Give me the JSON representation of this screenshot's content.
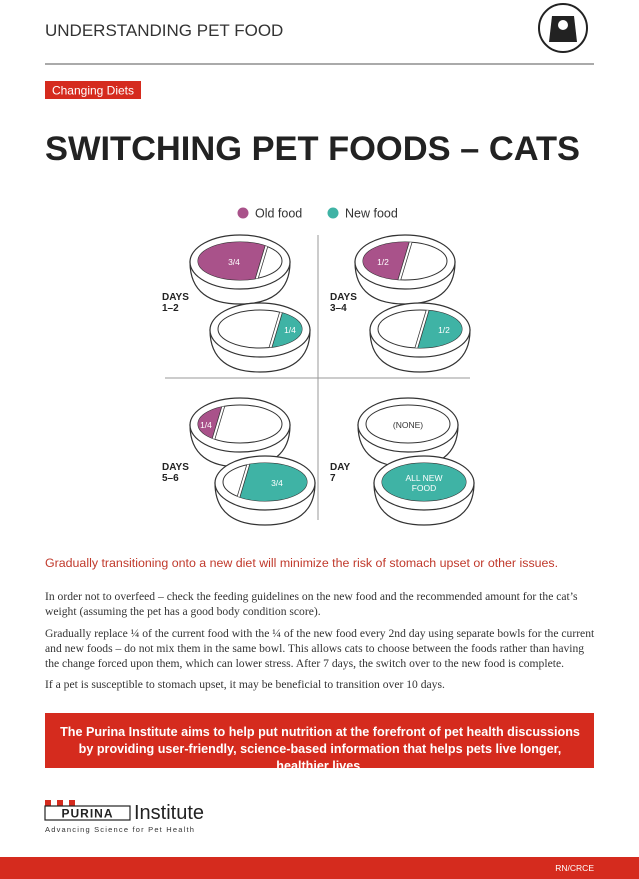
{
  "header": {
    "title": "UNDERSTANDING PET FOOD"
  },
  "tag": "Changing Diets",
  "title": "SWITCHING PET FOODS – CATS",
  "legend": [
    "Old food",
    "New food"
  ],
  "panels": [
    {
      "days": [
        "DAYS",
        "1–2"
      ],
      "top": [
        "3/4"
      ],
      "bottom": [
        "1/4"
      ]
    },
    {
      "days": [
        "DAYS",
        "3–4"
      ],
      "top": [
        "1/2"
      ],
      "bottom": [
        "1/2"
      ]
    },
    {
      "days": [
        "DAYS",
        "5–6"
      ],
      "top": [
        "1/4"
      ],
      "bottom": [
        "3/4"
      ]
    },
    {
      "days": [
        "DAY",
        "7"
      ],
      "top": [
        "(NONE)"
      ],
      "bottom": [
        "ALL NEW",
        "FOOD"
      ]
    }
  ],
  "lead": "Gradually transitioning onto a new diet will minimize the risk of stomach upset or other issues.",
  "paragraphs": [
    "In order not to overfeed – check the feeding guidelines on the new food and the recommended amount for the cat’s weight (assuming the pet has a good body condition score).",
    "Gradually replace ¼ of the current food with the ¼ of the new food every 2nd day using separate bowls for the current and new foods – do not mix them in the same bowl. This allows cats to choose between the foods rather than having the change forced upon them, which can lower stress. After 7 days, the switch over to the new food is complete.",
    "If a pet is susceptible to stomach upset, it may be beneficial to transition over 10 days."
  ],
  "banner": "The Purina Institute aims to help put nutrition at the forefront of pet health discussions by providing user-friendly, science-based information that helps pets live longer, healthier lives.",
  "footer": {
    "brand": "PURINA",
    "institute": "Institute",
    "tagline": "Advancing Science for Pet Health",
    "code": "RN/CRCE"
  }
}
